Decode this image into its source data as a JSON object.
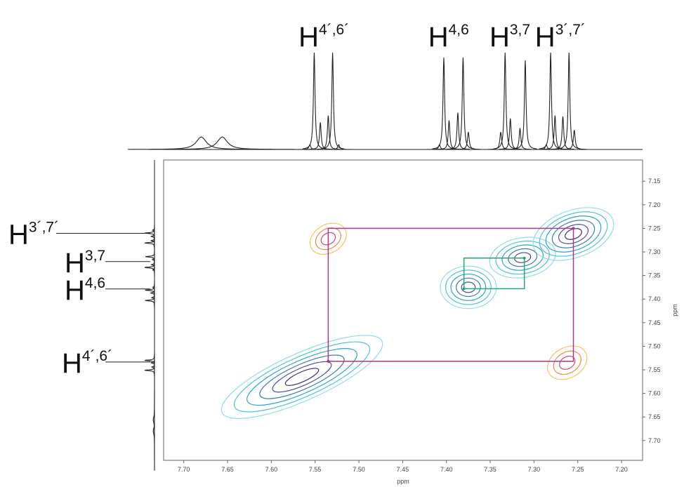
{
  "chart_data": {
    "type": "nmr2d",
    "xlabel": "ppm",
    "ylabel": "ppm",
    "xlim": [
      7.723,
      7.176
    ],
    "ylim": [
      7.105,
      7.742
    ],
    "xticks": [
      {
        "value": 7.7,
        "label": "7.70"
      },
      7.65,
      {
        "value": 7.6,
        "label": "7.60"
      },
      7.55,
      {
        "value": 7.5,
        "label": "7.50"
      },
      7.45,
      {
        "value": 7.4,
        "label": "7.40"
      },
      7.35,
      {
        "value": 7.3,
        "label": "7.30"
      },
      7.25,
      {
        "value": 7.2,
        "label": "7.20"
      }
    ],
    "yticks": [
      7.15,
      {
        "value": 7.2,
        "label": "7.20"
      },
      7.25,
      {
        "value": 7.3,
        "label": "7.30"
      },
      7.35,
      {
        "value": 7.4,
        "label": "7.40"
      },
      7.45,
      {
        "value": 7.5,
        "label": "7.50"
      },
      7.55,
      {
        "value": 7.6,
        "label": "7.60"
      },
      7.65,
      {
        "value": 7.7,
        "label": "7.70"
      }
    ],
    "top_labels": [
      {
        "main": "H",
        "sup": "4´,6´",
        "x": 7.54
      },
      {
        "main": "H",
        "sup": "4,6",
        "x": 7.392
      },
      {
        "main": "H",
        "sup": "3,7",
        "x": 7.322
      },
      {
        "main": "H",
        "sup": "3´,7´",
        "x": 7.27
      }
    ],
    "left_labels": [
      {
        "main": "H",
        "sup": "3´,7´",
        "y": 7.262
      },
      {
        "main": "H",
        "sup": "3,7",
        "y": 7.322
      },
      {
        "main": "H",
        "sup": "4,6",
        "y": 7.38
      },
      {
        "main": "H",
        "sup": "4´,6´",
        "y": 7.535
      }
    ],
    "peaks": [
      {
        "x": 7.68,
        "h": 0.13,
        "w": 0.007
      },
      {
        "x": 7.656,
        "h": 0.13,
        "w": 0.007
      },
      {
        "x": 7.556,
        "h": 0.05,
        "w": 0.0012
      },
      {
        "x": 7.551,
        "h": 1.0,
        "w": 0.0011
      },
      {
        "x": 7.544,
        "h": 0.28,
        "w": 0.0011
      },
      {
        "x": 7.535,
        "h": 0.35,
        "w": 0.0011
      },
      {
        "x": 7.53,
        "h": 1.0,
        "w": 0.0011
      },
      {
        "x": 7.523,
        "h": 0.05,
        "w": 0.0012
      },
      {
        "x": 7.408,
        "h": 0.05,
        "w": 0.0012
      },
      {
        "x": 7.403,
        "h": 0.95,
        "w": 0.0011
      },
      {
        "x": 7.397,
        "h": 0.3,
        "w": 0.0011
      },
      {
        "x": 7.387,
        "h": 0.38,
        "w": 0.0011
      },
      {
        "x": 7.381,
        "h": 0.95,
        "w": 0.0011
      },
      {
        "x": 7.375,
        "h": 0.18,
        "w": 0.0012
      },
      {
        "x": 7.338,
        "h": 0.18,
        "w": 0.0012
      },
      {
        "x": 7.333,
        "h": 1.0,
        "w": 0.0011
      },
      {
        "x": 7.327,
        "h": 0.32,
        "w": 0.0011
      },
      {
        "x": 7.316,
        "h": 0.22,
        "w": 0.0011
      },
      {
        "x": 7.31,
        "h": 0.92,
        "w": 0.0011
      },
      {
        "x": 7.286,
        "h": 0.05,
        "w": 0.0012
      },
      {
        "x": 7.281,
        "h": 1.0,
        "w": 0.0011
      },
      {
        "x": 7.276,
        "h": 0.35,
        "w": 0.0011
      },
      {
        "x": 7.267,
        "h": 0.34,
        "w": 0.0011
      },
      {
        "x": 7.26,
        "h": 1.0,
        "w": 0.0011
      },
      {
        "x": 7.254,
        "h": 0.2,
        "w": 0.0012
      }
    ],
    "contours": [
      {
        "x": 7.565,
        "y": 7.565,
        "rx": 0.1,
        "ry": 0.05,
        "angle": -24,
        "colors": [
          "#8fdbe9",
          "#4cc3dc",
          "#2ba3cc",
          "#3a7cbb",
          "#4b4e9e",
          "#3a2c7c"
        ]
      },
      {
        "x": 7.375,
        "y": 7.375,
        "rx": 0.032,
        "ry": 0.045,
        "angle": 0,
        "colors": [
          "#8fdbe9",
          "#4cc3dc",
          "#2ba3cc",
          "#3a7cbb",
          "#4b4e9e"
        ]
      },
      {
        "x": 7.313,
        "y": 7.312,
        "rx": 0.038,
        "ry": 0.042,
        "angle": -10,
        "colors": [
          "#8fdbe9",
          "#4cc3dc",
          "#2ba3cc",
          "#3a7cbb",
          "#4b4e9e"
        ]
      },
      {
        "x": 7.255,
        "y": 7.262,
        "rx": 0.048,
        "ry": 0.05,
        "angle": -20,
        "colors": [
          "#8fdbe9",
          "#4cc3dc",
          "#2ba3cc",
          "#3a7cbb",
          "#4b4e9e",
          "#3a2c7c"
        ]
      },
      {
        "x": 7.535,
        "y": 7.272,
        "rx": 0.022,
        "ry": 0.03,
        "angle": -30,
        "colors": [
          "#f6c35a",
          "#f08a3a",
          "#d04a6a"
        ]
      },
      {
        "x": 7.262,
        "y": 7.535,
        "rx": 0.024,
        "ry": 0.032,
        "angle": -30,
        "colors": [
          "#f6c35a",
          "#f08a3a",
          "#d04a6a"
        ]
      }
    ],
    "boxes": [
      {
        "x": [
          7.535,
          7.255
        ],
        "y": [
          7.25,
          7.532
        ],
        "color": "#a8368f"
      },
      {
        "x": [
          7.38,
          7.311
        ],
        "y": [
          7.313,
          7.378
        ],
        "color": "#22a874"
      }
    ]
  }
}
